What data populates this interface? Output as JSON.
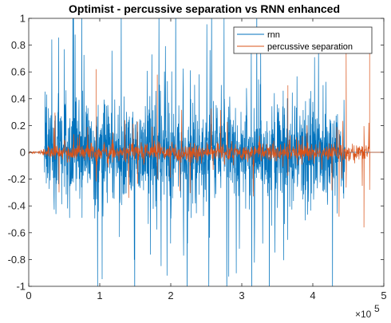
{
  "chart_data": {
    "type": "line",
    "title": "Optimist - percussive separation vs RNN enhanced",
    "xlabel": "",
    "ylabel": "",
    "xlim": [
      0,
      500000
    ],
    "ylim": [
      -1,
      1
    ],
    "x_ticks": [
      0,
      100000,
      200000,
      300000,
      400000,
      500000
    ],
    "x_tick_labels": [
      "0",
      "1",
      "2",
      "3",
      "4",
      "5"
    ],
    "x_exponent_base": "×10",
    "x_exponent_power": "5",
    "y_ticks": [
      -1,
      -0.8,
      -0.6,
      -0.4,
      -0.2,
      0,
      0.2,
      0.4,
      0.6,
      0.8,
      1
    ],
    "y_tick_labels": [
      "-1",
      "-0.8",
      "-0.6",
      "-0.4",
      "-0.2",
      "0",
      "0.2",
      "0.4",
      "0.6",
      "0.8",
      "1"
    ],
    "grid": false,
    "legend_position": "top-right",
    "series": [
      {
        "name": "rnn",
        "color": "#0072BD",
        "signal_start": 22000,
        "signal_end": 445000,
        "typical_amplitude": 0.3,
        "peak_amplitude": 1.0
      },
      {
        "name": "percussive separation",
        "color": "#D95319",
        "signal_start": 0,
        "signal_end": 480000,
        "typical_amplitude": 0.06,
        "peak_amplitude": 0.8,
        "spikes": [
          {
            "x": 95000,
            "y": 0.62
          },
          {
            "x": 181000,
            "y": 0.58
          },
          {
            "x": 365000,
            "y": 0.5
          },
          {
            "x": 437000,
            "y": -0.48
          },
          {
            "x": 447000,
            "y": 0.75
          },
          {
            "x": 472000,
            "y": -0.56
          },
          {
            "x": 480000,
            "y": 0.8
          }
        ]
      }
    ]
  }
}
